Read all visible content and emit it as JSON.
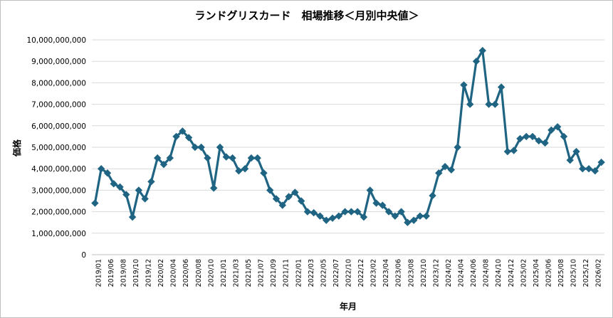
{
  "chart_data": {
    "type": "line",
    "title": "ランドグリスカード　相場推移＜月別中央値＞",
    "xlabel": "年月",
    "ylabel": "価格",
    "ylim": [
      0,
      10000000000
    ],
    "y_ticks": [
      0,
      1000000000,
      2000000000,
      3000000000,
      4000000000,
      5000000000,
      6000000000,
      7000000000,
      8000000000,
      9000000000,
      10000000000
    ],
    "y_tick_labels": [
      "0",
      "1,000,000,000",
      "2,000,000,000",
      "3,000,000,000",
      "4,000,000,000",
      "5,000,000,000",
      "6,000,000,000",
      "7,000,000,000",
      "8,000,000,000",
      "9,000,000,000",
      "10,000,000,000"
    ],
    "x_tick_labels": [
      "2019/01",
      "2019/06",
      "2019/08",
      "2019/10",
      "2019/12",
      "2020/02",
      "2020/04",
      "2020/06",
      "2020/08",
      "2020/10",
      "2021/01",
      "2021/03",
      "2021/05",
      "2021/07",
      "2021/09",
      "2021/11",
      "2022/01",
      "2022/03",
      "2022/05",
      "2022/07",
      "2022/10",
      "2022/12",
      "2023/02",
      "2023/04",
      "2023/06",
      "2023/08",
      "2023/10",
      "2023/12",
      "2024/02",
      "2024/04",
      "2024/06",
      "2024/08",
      "2024/10",
      "2024/12",
      "2025/02",
      "2025/04",
      "2025/06",
      "2025/08",
      "2025/10",
      "2025/12",
      "2026/02"
    ],
    "grid": true,
    "legend": "none",
    "color": "#1f6483",
    "series": [
      {
        "values": [
          2400000000,
          4000000000,
          3800000000,
          3300000000,
          3150000000,
          2800000000,
          1750000000,
          3000000000,
          2600000000,
          3400000000,
          4500000000,
          4200000000,
          4500000000,
          5500000000,
          5750000000,
          5450000000,
          5000000000,
          5000000000,
          4500000000,
          3100000000,
          5000000000,
          4550000000,
          4500000000,
          3900000000,
          4000000000,
          4500000000,
          4500000000,
          3800000000,
          3000000000,
          2600000000,
          2300000000,
          2700000000,
          2900000000,
          2500000000,
          2000000000,
          1950000000,
          1800000000,
          1600000000,
          1700000000,
          1800000000,
          2000000000,
          2000000000,
          2000000000,
          1750000000,
          3000000000,
          2400000000,
          2300000000,
          2000000000,
          1800000000,
          2000000000,
          1500000000,
          1600000000,
          1800000000,
          1800000000,
          2750000000,
          3800000000,
          4100000000,
          3950000000,
          5000000000,
          7900000000,
          7000000000,
          9000000000,
          9500000000,
          7000000000,
          7000000000,
          7800000000,
          4800000000,
          4850000000,
          5400000000,
          5500000000,
          5500000000,
          5300000000,
          5200000000,
          5800000000,
          5950000000,
          5500000000,
          4400000000,
          4800000000,
          4000000000,
          4000000000,
          3900000000,
          4300000000
        ]
      }
    ]
  }
}
